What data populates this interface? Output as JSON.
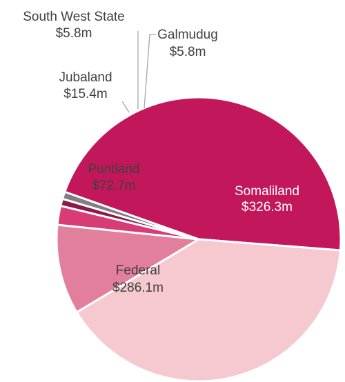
{
  "chart_data": {
    "type": "pie",
    "title": "",
    "slices": [
      {
        "label": "Somaliland",
        "value_text": "$326.3m",
        "value": 326.3,
        "color": "#c2185b"
      },
      {
        "label": "Federal",
        "value_text": "$286.1m",
        "value": 286.1,
        "color": "#f6c9d1"
      },
      {
        "label": "Puntland",
        "value_text": "$72.7m",
        "value": 72.7,
        "color": "#e17f9c"
      },
      {
        "label": "Jubaland",
        "value_text": "$15.4m",
        "value": 15.4,
        "color": "#d73c75"
      },
      {
        "label": "South West State",
        "value_text": "$5.8m",
        "value": 5.8,
        "color": "#8b1a4a"
      },
      {
        "label": "Galmudug",
        "value_text": "$5.8m",
        "value": 5.8,
        "color": "#7f7f7f"
      }
    ],
    "legend": "none",
    "label_color_dark": "#404040",
    "label_color_light": "#ffffff",
    "border_color": "#ffffff"
  }
}
